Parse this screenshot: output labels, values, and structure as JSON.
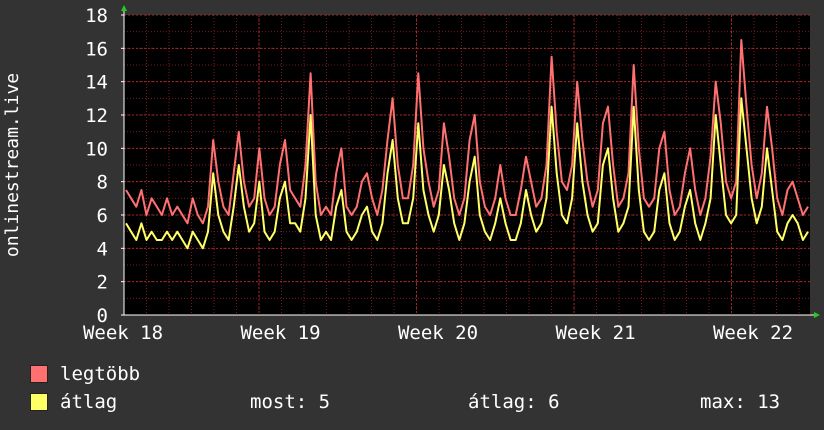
{
  "chart_data": {
    "type": "line",
    "ylabel": "onlinestream.live",
    "ylim": [
      0,
      18
    ],
    "yticks": [
      0,
      2,
      4,
      6,
      8,
      10,
      12,
      14,
      16,
      18
    ],
    "xticks": [
      "Week 18",
      "Week 19",
      "Week 20",
      "Week 21",
      "Week 22"
    ],
    "grid": true,
    "colors": {
      "max": "#ff7070",
      "avg": "#ffff66",
      "background": "#000000",
      "grid": "#7a1a1a"
    },
    "series": [
      {
        "name": "legtöbb",
        "color": "#ff7070",
        "values": [
          7.5,
          7.0,
          6.5,
          7.5,
          6.0,
          7.0,
          6.5,
          6.0,
          7.0,
          6.0,
          6.5,
          6.0,
          5.5,
          7.0,
          6.0,
          5.5,
          6.5,
          10.5,
          8.0,
          6.5,
          6.0,
          8.5,
          11.0,
          8.0,
          6.5,
          7.0,
          10.0,
          7.0,
          6.0,
          6.5,
          9.0,
          10.5,
          7.5,
          7.0,
          6.5,
          9.0,
          14.5,
          8.0,
          6.0,
          6.5,
          6.0,
          8.5,
          10.0,
          6.5,
          6.0,
          6.5,
          8.0,
          8.5,
          7.0,
          6.0,
          7.5,
          10.5,
          13.0,
          9.0,
          7.0,
          7.0,
          9.0,
          14.5,
          10.0,
          8.0,
          6.5,
          7.5,
          11.5,
          9.5,
          7.0,
          6.0,
          7.0,
          10.5,
          12.0,
          8.0,
          6.5,
          6.0,
          7.0,
          9.0,
          7.0,
          6.0,
          6.0,
          7.5,
          9.5,
          8.0,
          6.5,
          7.0,
          9.0,
          15.5,
          11.0,
          8.0,
          7.5,
          9.0,
          14.0,
          10.5,
          8.0,
          6.5,
          7.5,
          11.5,
          12.5,
          9.0,
          6.5,
          7.0,
          8.5,
          15.0,
          10.0,
          7.0,
          6.5,
          7.0,
          10.0,
          11.0,
          7.5,
          6.0,
          6.5,
          8.5,
          10.0,
          7.5,
          6.0,
          7.0,
          9.5,
          14.0,
          11.5,
          8.0,
          7.0,
          8.0,
          16.5,
          12.5,
          9.0,
          7.0,
          8.5,
          12.5,
          10.0,
          7.0,
          6.0,
          7.5,
          8.0,
          7.0,
          6.0,
          6.5
        ]
      },
      {
        "name": "átlag",
        "color": "#ffff66",
        "values": [
          5.5,
          5.0,
          4.5,
          5.5,
          4.5,
          5.0,
          4.5,
          4.5,
          5.0,
          4.5,
          5.0,
          4.5,
          4.0,
          5.0,
          4.5,
          4.0,
          5.0,
          8.5,
          6.0,
          5.0,
          4.5,
          6.5,
          9.0,
          6.5,
          5.0,
          5.5,
          8.0,
          5.0,
          4.5,
          5.0,
          7.0,
          8.0,
          5.5,
          5.5,
          5.0,
          7.0,
          12.0,
          6.0,
          4.5,
          5.0,
          4.5,
          6.5,
          7.5,
          5.0,
          4.5,
          5.0,
          6.0,
          6.5,
          5.0,
          4.5,
          5.5,
          8.5,
          10.5,
          7.0,
          5.5,
          5.5,
          7.0,
          11.5,
          7.5,
          6.0,
          5.0,
          6.0,
          9.0,
          7.5,
          5.5,
          4.5,
          5.5,
          8.0,
          9.5,
          6.0,
          5.0,
          4.5,
          5.5,
          7.0,
          5.5,
          4.5,
          4.5,
          5.5,
          7.5,
          6.0,
          5.0,
          5.5,
          7.0,
          12.5,
          8.5,
          6.0,
          5.5,
          7.0,
          11.5,
          8.0,
          6.0,
          5.0,
          5.5,
          9.0,
          10.0,
          7.0,
          5.0,
          5.5,
          6.5,
          12.5,
          7.5,
          5.0,
          4.5,
          5.0,
          7.5,
          8.5,
          5.5,
          4.5,
          5.0,
          6.5,
          7.5,
          5.5,
          4.5,
          5.5,
          7.0,
          12.0,
          9.0,
          6.0,
          5.5,
          6.0,
          13.0,
          10.0,
          7.0,
          5.5,
          6.5,
          10.0,
          7.5,
          5.0,
          4.5,
          5.5,
          6.0,
          5.5,
          4.5,
          5.0
        ]
      }
    ]
  },
  "legend": {
    "max_label": "legtöbb",
    "avg_label": "átlag"
  },
  "stats": {
    "now": "most: 5",
    "avg": "átlag: 6",
    "max": "max: 13"
  }
}
